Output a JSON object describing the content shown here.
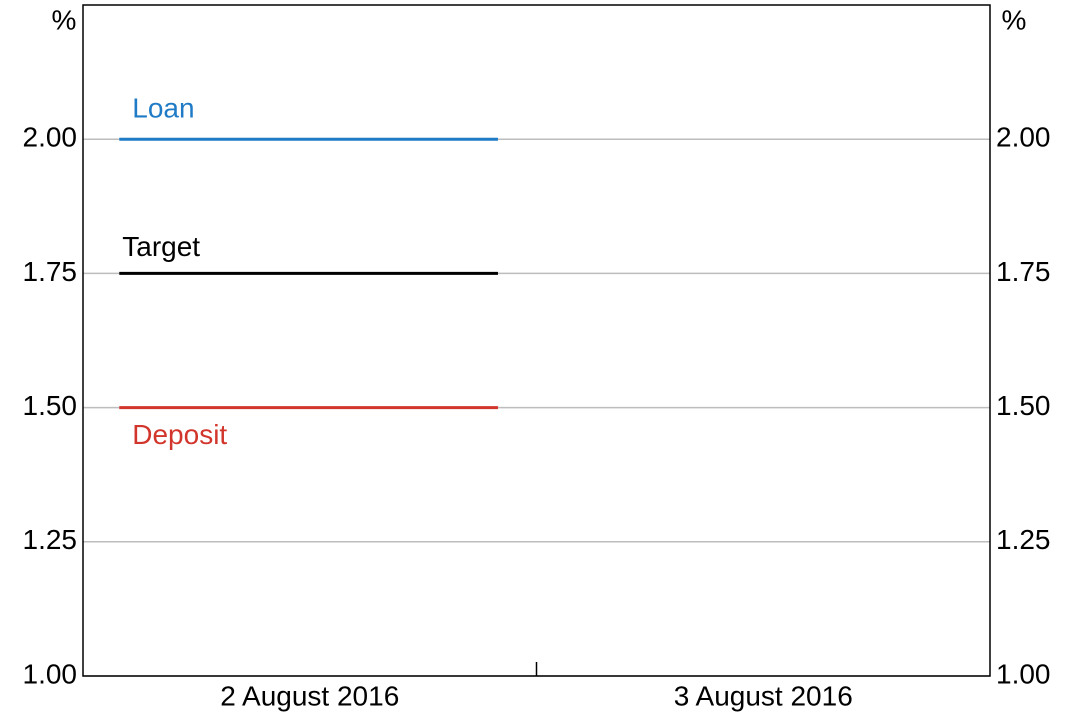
{
  "chart_data": {
    "type": "line",
    "categories": [
      "2 August 2016",
      "3 August 2016"
    ],
    "series": [
      {
        "name": "Loan",
        "color": "#1f7bc6",
        "values": [
          2.0,
          null
        ]
      },
      {
        "name": "Target",
        "color": "#000000",
        "values": [
          1.75,
          null
        ]
      },
      {
        "name": "Deposit",
        "color": "#d2352b",
        "values": [
          1.5,
          null
        ]
      }
    ],
    "ylabel": "%",
    "y2label": "%",
    "ylim": [
      1.0,
      2.25
    ],
    "yticks": [
      {
        "value": 1,
        "label": "1.00"
      },
      {
        "value": 1.25,
        "label": "1.25"
      },
      {
        "value": 1.5,
        "label": "1.50"
      },
      {
        "value": 1.75,
        "label": "1.75"
      },
      {
        "value": 2,
        "label": "2.00"
      }
    ],
    "y2lim": [
      1.0,
      2.25
    ],
    "y2ticks": [
      {
        "value": 1,
        "label": "1.00"
      },
      {
        "value": 1.25,
        "label": "1.25"
      },
      {
        "value": 1.5,
        "label": "1.50"
      },
      {
        "value": 1.75,
        "label": "1.75"
      },
      {
        "value": 2,
        "label": "2.00"
      }
    ],
    "grid": true
  }
}
